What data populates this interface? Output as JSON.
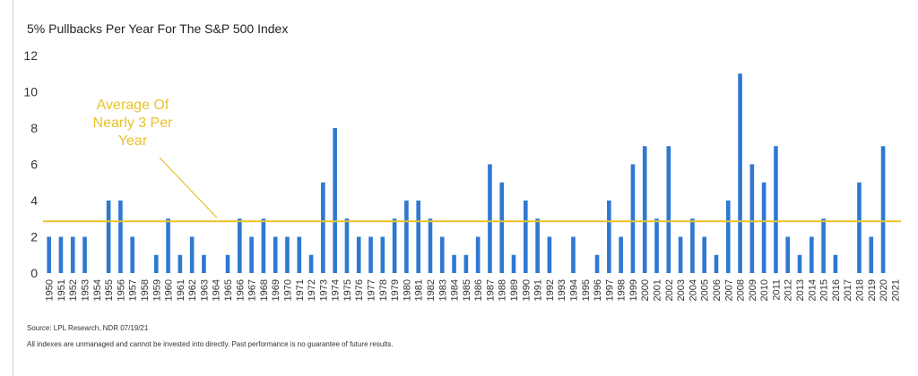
{
  "chart_data": {
    "type": "bar",
    "title": "5% Pullbacks Per Year For The S&P 500 Index",
    "categories": [
      "1950",
      "1951",
      "1952",
      "1953",
      "1954",
      "1955",
      "1956",
      "1957",
      "1958",
      "1959",
      "1960",
      "1961",
      "1962",
      "1963",
      "1964",
      "1965",
      "1966",
      "1967",
      "1968",
      "1969",
      "1970",
      "1971",
      "1972",
      "1973",
      "1974",
      "1975",
      "1976",
      "1977",
      "1978",
      "1979",
      "1980",
      "1981",
      "1982",
      "1983",
      "1984",
      "1985",
      "1986",
      "1987",
      "1988",
      "1989",
      "1990",
      "1991",
      "1992",
      "1993",
      "1994",
      "1995",
      "1996",
      "1997",
      "1998",
      "1999",
      "2000",
      "2001",
      "2002",
      "2003",
      "2004",
      "2005",
      "2006",
      "2007",
      "2008",
      "2009",
      "2010",
      "2011",
      "2012",
      "2013",
      "2014",
      "2015",
      "2016",
      "2017",
      "2018",
      "2019",
      "2020",
      "2021"
    ],
    "values": [
      2,
      2,
      2,
      2,
      0,
      4,
      4,
      2,
      0,
      1,
      3,
      1,
      2,
      1,
      0,
      1,
      3,
      2,
      3,
      2,
      2,
      2,
      1,
      5,
      8,
      3,
      2,
      2,
      2,
      3,
      4,
      4,
      3,
      2,
      1,
      1,
      2,
      6,
      5,
      1,
      4,
      3,
      2,
      0,
      2,
      0,
      1,
      4,
      2,
      6,
      7,
      3,
      7,
      2,
      3,
      2,
      1,
      4,
      11,
      6,
      5,
      7,
      2,
      1,
      2,
      3,
      1,
      0,
      5,
      2,
      7,
      0
    ],
    "ylim": [
      0,
      12
    ],
    "yticks": [
      0,
      2,
      4,
      6,
      8,
      10,
      12
    ],
    "average_line": 2.85,
    "annotation": [
      "Average Of",
      "Nearly 3 Per",
      "Year"
    ],
    "bar_color": "#2e78d2",
    "average_color": "#e8c22c",
    "grid": false
  },
  "footer": {
    "source": "Source: LPL Research, NDR 07/19/21",
    "disclaimer": "All indexes are unmanaged and cannot be invested into directly. Past performance is no guarantee of future results."
  }
}
